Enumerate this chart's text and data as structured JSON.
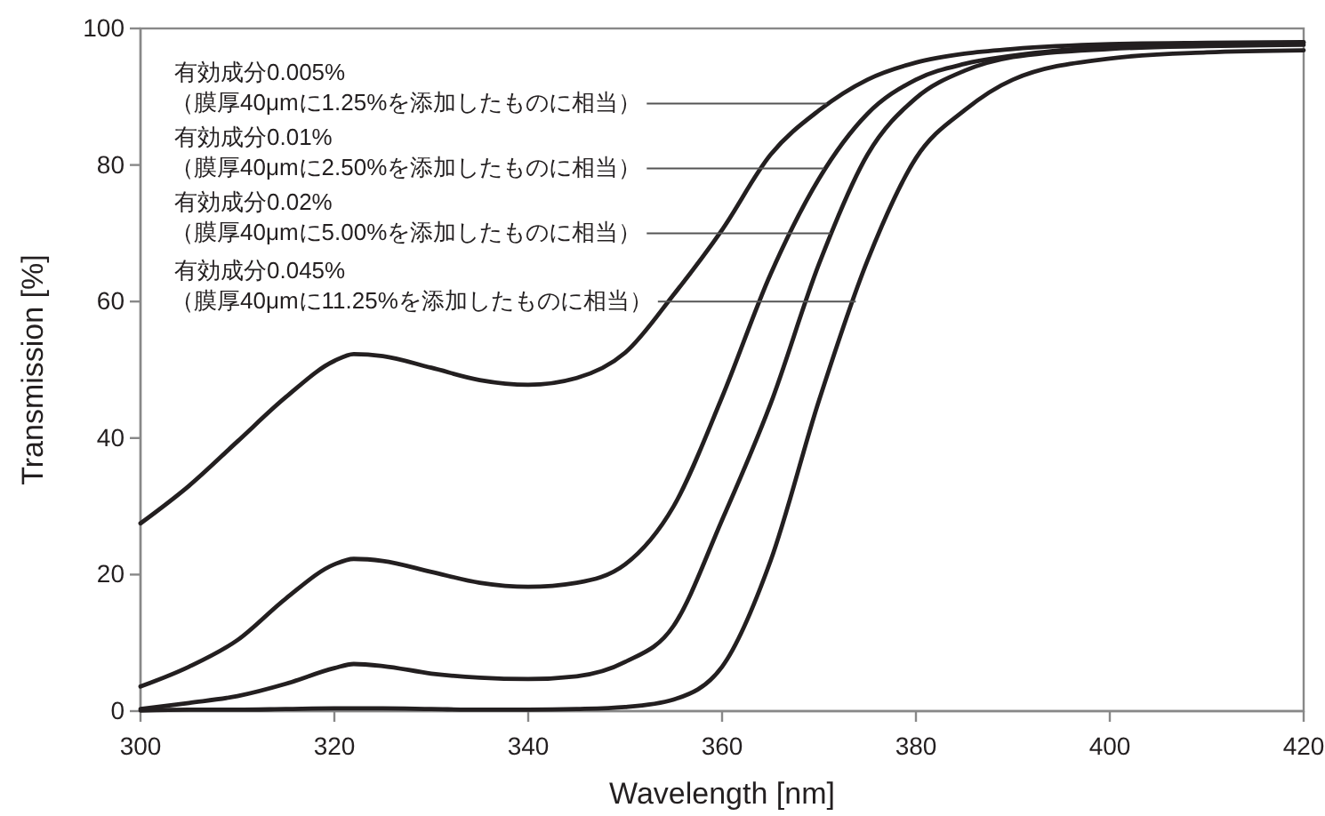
{
  "chart_data": {
    "type": "line",
    "xlabel": "Wavelength [nm]",
    "ylabel": "Transmission [%]",
    "x": [
      300,
      305,
      310,
      315,
      320,
      322,
      325,
      330,
      335,
      340,
      345,
      350,
      355,
      360,
      365,
      370,
      375,
      380,
      385,
      390,
      400,
      410,
      420
    ],
    "xlim": [
      300,
      420
    ],
    "xticks": [
      300,
      320,
      340,
      360,
      380,
      400,
      420
    ],
    "ylim": [
      0,
      100
    ],
    "yticks": [
      0,
      20,
      40,
      60,
      80,
      100
    ],
    "grid": false,
    "line_style": "solid",
    "marker": "none",
    "series": [
      {
        "color": "#231f20",
        "values": [
          27.5,
          33,
          39.5,
          46,
          51.3,
          52.3,
          52,
          50.3,
          48.5,
          47.8,
          48.8,
          52.5,
          61,
          70.5,
          81.5,
          88,
          92.5,
          95,
          96.3,
          97,
          97.7,
          97.9,
          98
        ]
      },
      {
        "color": "#231f20",
        "values": [
          3.6,
          6.5,
          10.4,
          16.5,
          21.5,
          22.3,
          22,
          20.4,
          18.8,
          18.2,
          18.8,
          21.5,
          30,
          46,
          64,
          78,
          87.5,
          92.5,
          94.8,
          96,
          97.3,
          97.7,
          97.9
        ]
      },
      {
        "color": "#231f20",
        "values": [
          0.3,
          1.2,
          2.2,
          4,
          6.3,
          6.9,
          6.6,
          5.5,
          4.9,
          4.7,
          5.1,
          7.2,
          12.5,
          28,
          45,
          65.5,
          81.5,
          89.8,
          93.8,
          95.8,
          97,
          97.4,
          97.6
        ]
      },
      {
        "color": "#231f20",
        "values": [
          0.1,
          0.2,
          0.2,
          0.3,
          0.4,
          0.4,
          0.4,
          0.3,
          0.2,
          0.2,
          0.3,
          0.6,
          1.7,
          6.5,
          22,
          45.5,
          66,
          81,
          88,
          92.5,
          95.6,
          96.5,
          96.8
        ]
      }
    ],
    "annotations": [
      {
        "text": "有効成分0.005%\n（膜厚40μmに1.25%を添加したものに相当）",
        "x": 370.8,
        "y": 89
      },
      {
        "text": "有効成分0.01%\n（膜厚40μmに2.50%を添加したものに相当）",
        "x": 370.5,
        "y": 79.5
      },
      {
        "text": "有効成分0.02%\n（膜厚40μmに5.00%を添加したものに相当）",
        "x": 371.2,
        "y": 70
      },
      {
        "text": "有効成分0.045%\n（膜厚40μmに11.25%を添加したものに相当）",
        "x": 373.8,
        "y": 60
      }
    ]
  }
}
